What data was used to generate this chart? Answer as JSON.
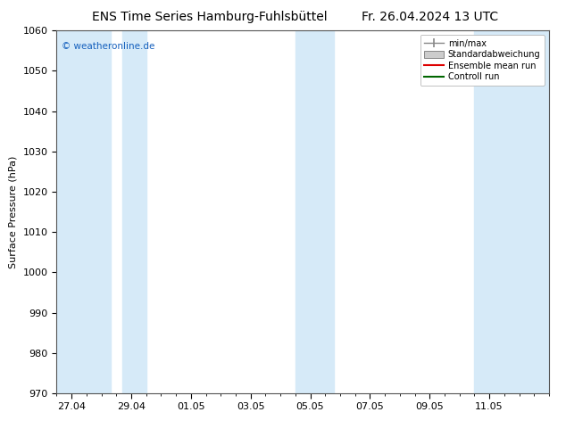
{
  "title_left": "ENS Time Series Hamburg-Fuhlsbüttel",
  "title_right": "Fr. 26.04.2024 13 UTC",
  "ylabel": "Surface Pressure (hPa)",
  "ylim": [
    970,
    1060
  ],
  "yticks": [
    970,
    980,
    990,
    1000,
    1010,
    1020,
    1030,
    1040,
    1050,
    1060
  ],
  "xlim": [
    0,
    16.5
  ],
  "x_tick_labels": [
    "27.04",
    "29.04",
    "01.05",
    "03.05",
    "05.05",
    "07.05",
    "09.05",
    "11.05"
  ],
  "x_tick_positions": [
    0.5,
    2.5,
    4.5,
    6.5,
    8.5,
    10.5,
    12.5,
    14.5
  ],
  "shaded_bands": [
    {
      "x_start": 0.0,
      "x_end": 1.8
    },
    {
      "x_start": 2.2,
      "x_end": 3.0
    },
    {
      "x_start": 8.0,
      "x_end": 9.3
    },
    {
      "x_start": 14.0,
      "x_end": 16.5
    }
  ],
  "shade_color": "#d6eaf8",
  "watermark": "© weatheronline.de",
  "watermark_color": "#1560bd",
  "legend_labels": [
    "min/max",
    "Standardabweichung",
    "Ensemble mean run",
    "Controll run"
  ],
  "background_color": "#ffffff",
  "title_fontsize": 10,
  "axis_fontsize": 8,
  "tick_fontsize": 8
}
